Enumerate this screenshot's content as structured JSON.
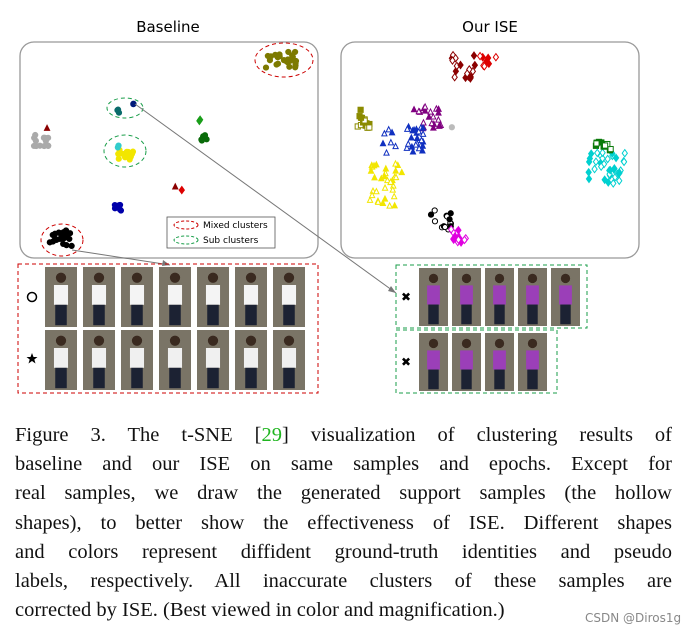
{
  "figure": {
    "panels": {
      "baseline_title": "Baseline",
      "ise_title": "Our ISE"
    },
    "legend": {
      "mixed": "Mixed clusters",
      "sub": "Sub clusters"
    },
    "caption": {
      "first_line": {
        "pre": "Figure 3.  The t-SNE [",
        "ref": "29",
        "post": "] visualization of clustering results of"
      },
      "lines": [
        "baseline and our ISE on same samples and epochs.  Except for",
        "real samples, we draw the generated support samples (the hollow",
        "shapes), to better show the effectiveness of ISE. Different shapes",
        "and colors represent diffident ground-truth identities and pseudo",
        "labels, respectively.  All inaccurate clusters of these samples are",
        "corrected by ISE. (Best viewed in color and magnification.)"
      ]
    },
    "watermark": "CSDN @Diros1g"
  }
}
